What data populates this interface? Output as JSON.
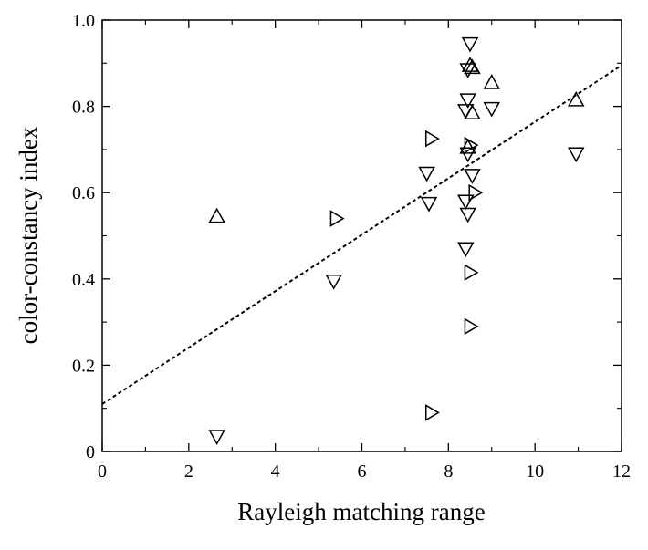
{
  "chart_data": {
    "type": "scatter",
    "title": "",
    "xlabel": "Rayleigh matching range",
    "ylabel": "color-constancy index",
    "xlim": [
      0,
      12
    ],
    "ylim": [
      0,
      1.0
    ],
    "xticks": [
      0,
      2,
      4,
      6,
      8,
      10,
      12
    ],
    "yticks": [
      0,
      0.2,
      0.4,
      0.6,
      0.8,
      1.0
    ],
    "xtick_labels": [
      "0",
      "2",
      "4",
      "6",
      "8",
      "10",
      "12"
    ],
    "ytick_labels": [
      "0",
      "0.2",
      "0.4",
      "0.6",
      "0.8",
      "1.0"
    ],
    "grid": false,
    "legend": "none",
    "series": [
      {
        "marker": "triangle-up",
        "points": [
          {
            "x": 2.65,
            "y": 0.545
          },
          {
            "x": 8.55,
            "y": 0.785
          },
          {
            "x": 8.45,
            "y": 0.705
          },
          {
            "x": 8.55,
            "y": 0.89
          },
          {
            "x": 8.5,
            "y": 0.895
          },
          {
            "x": 9.0,
            "y": 0.855
          },
          {
            "x": 10.95,
            "y": 0.815
          }
        ]
      },
      {
        "marker": "triangle-down",
        "points": [
          {
            "x": 2.65,
            "y": 0.035
          },
          {
            "x": 5.35,
            "y": 0.395
          },
          {
            "x": 7.5,
            "y": 0.645
          },
          {
            "x": 7.55,
            "y": 0.575
          },
          {
            "x": 8.4,
            "y": 0.47
          },
          {
            "x": 8.45,
            "y": 0.55
          },
          {
            "x": 8.4,
            "y": 0.58
          },
          {
            "x": 8.55,
            "y": 0.64
          },
          {
            "x": 8.45,
            "y": 0.69
          },
          {
            "x": 8.4,
            "y": 0.79
          },
          {
            "x": 8.45,
            "y": 0.815
          },
          {
            "x": 8.45,
            "y": 0.885
          },
          {
            "x": 8.5,
            "y": 0.945
          },
          {
            "x": 9.0,
            "y": 0.795
          },
          {
            "x": 10.95,
            "y": 0.69
          }
        ]
      },
      {
        "marker": "triangle-right",
        "points": [
          {
            "x": 5.4,
            "y": 0.54
          },
          {
            "x": 7.6,
            "y": 0.725
          },
          {
            "x": 7.6,
            "y": 0.09
          },
          {
            "x": 8.5,
            "y": 0.29
          },
          {
            "x": 8.5,
            "y": 0.415
          },
          {
            "x": 8.6,
            "y": 0.6
          },
          {
            "x": 8.5,
            "y": 0.71
          }
        ]
      }
    ],
    "fit_line": {
      "style": "dashed",
      "x": [
        0,
        12
      ],
      "y": [
        0.11,
        0.895
      ]
    },
    "colors": {
      "axis": "#000000",
      "marker_stroke": "#000000",
      "fit_line": "#000000"
    }
  }
}
